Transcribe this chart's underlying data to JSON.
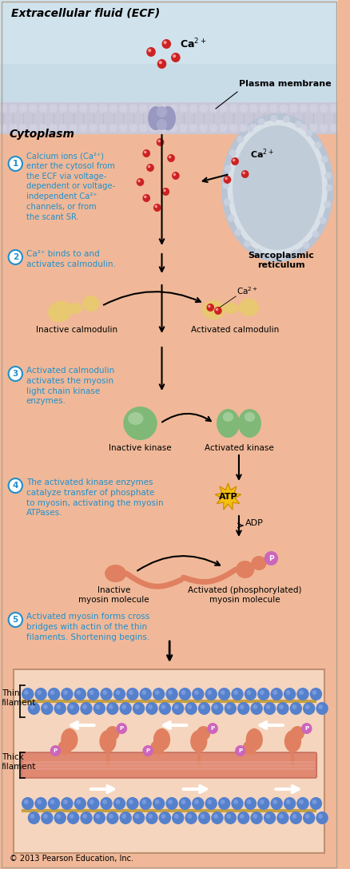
{
  "bg_ecf_color": "#c5dce8",
  "bg_cyto_color": "#f0b898",
  "bg_box_color": "#f5d5c0",
  "membrane_color": "#c0c0d0",
  "membrane_dot_color": "#d8d8e8",
  "text_ecf": "Extracellular fluid (ECF)",
  "text_cytoplasm": "Cytoplasm",
  "text_plasma": "Plasma membrane",
  "text_sarcoplasmic": "Sarcoplasmic\nreticulum",
  "step1_text": "Calcium ions (Ca²⁺)\nenter the cytosol from\nthe ECF via voltage-\ndependent or voltage-\nindependent Ca²⁺\nchannels, or from\nthe scant SR.",
  "step2_text": "Ca²⁺ binds to and\nactivates calmodulin.",
  "step3_text": "Activated calmodulin\nactivates the myosin\nlight chain kinase\nenzymes.",
  "step4_text": "The activated kinase enzymes\ncatalyze transfer of phosphate\nto myosin, activating the myosin\nATPases.",
  "step5_text": "Activated myosin forms cross\nbridges with actin of the thin\nfilaments. Shortening begins.",
  "label_inactive_calm": "Inactive calmodulin",
  "label_active_calm": "Activated calmodulin",
  "label_inactive_kinase": "Inactive kinase",
  "label_active_kinase": "Activated kinase",
  "label_inactive_myosin": "Inactive\nmyosin molecule",
  "label_active_myosin": "Activated (phosphorylated)\nmyosin molecule",
  "label_thin": "Thin\nfilament",
  "label_thick": "Thick\nfilament",
  "label_atp": "ATP",
  "label_adp": "ADP",
  "step_color": "#2090cc",
  "calmodulin_color": "#e8c870",
  "kinase_color": "#80b878",
  "ca_color": "#cc2222",
  "myosin_color": "#e08060",
  "phosphate_color": "#cc66bb",
  "actin_color": "#5580cc",
  "thick_color": "#e07060",
  "arrow_color": "#222222",
  "copyright": "© 2013 Pearson Education, Inc."
}
